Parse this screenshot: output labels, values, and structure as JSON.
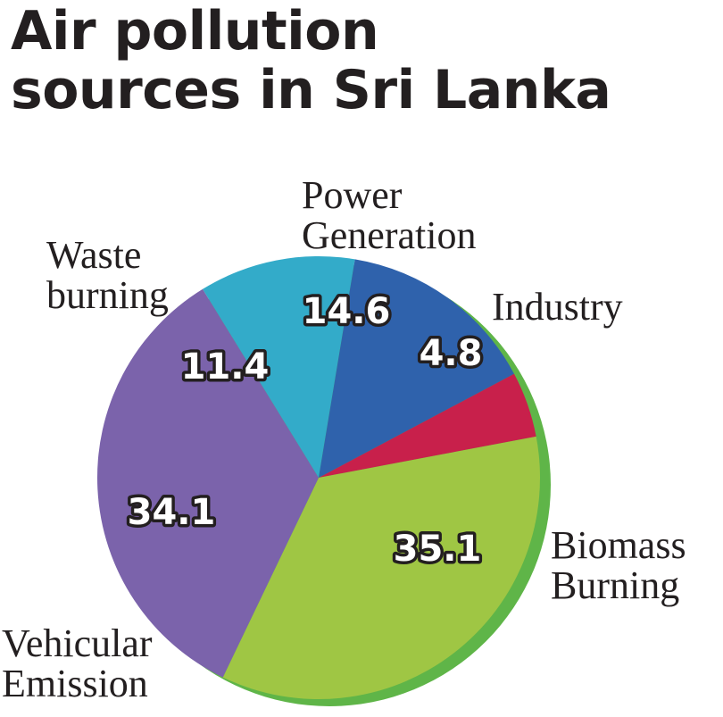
{
  "title_line1": "Air pollution",
  "title_line2": "sources in Sri Lanka",
  "chart_data": {
    "type": "pie",
    "title": "Air pollution sources in Sri Lanka",
    "slices": [
      {
        "label_lines": [
          "Industry"
        ],
        "value": 4.8,
        "value_text": "4.8",
        "color": "#c8204b"
      },
      {
        "label_lines": [
          "Biomass",
          "Burning"
        ],
        "value": 35.1,
        "value_text": "35.1",
        "color": "#9fc644"
      },
      {
        "label_lines": [
          "Vehicular",
          "Emission"
        ],
        "value": 34.1,
        "value_text": "34.1",
        "color": "#7b63ab"
      },
      {
        "label_lines": [
          "Waste",
          "burning"
        ],
        "value": 11.4,
        "value_text": "11.4",
        "color": "#33abc9"
      },
      {
        "label_lines": [
          "Power",
          "Generation"
        ],
        "value": 14.6,
        "value_text": "14.6",
        "color": "#2f62ac"
      }
    ],
    "depth_color": "#5fb548"
  }
}
